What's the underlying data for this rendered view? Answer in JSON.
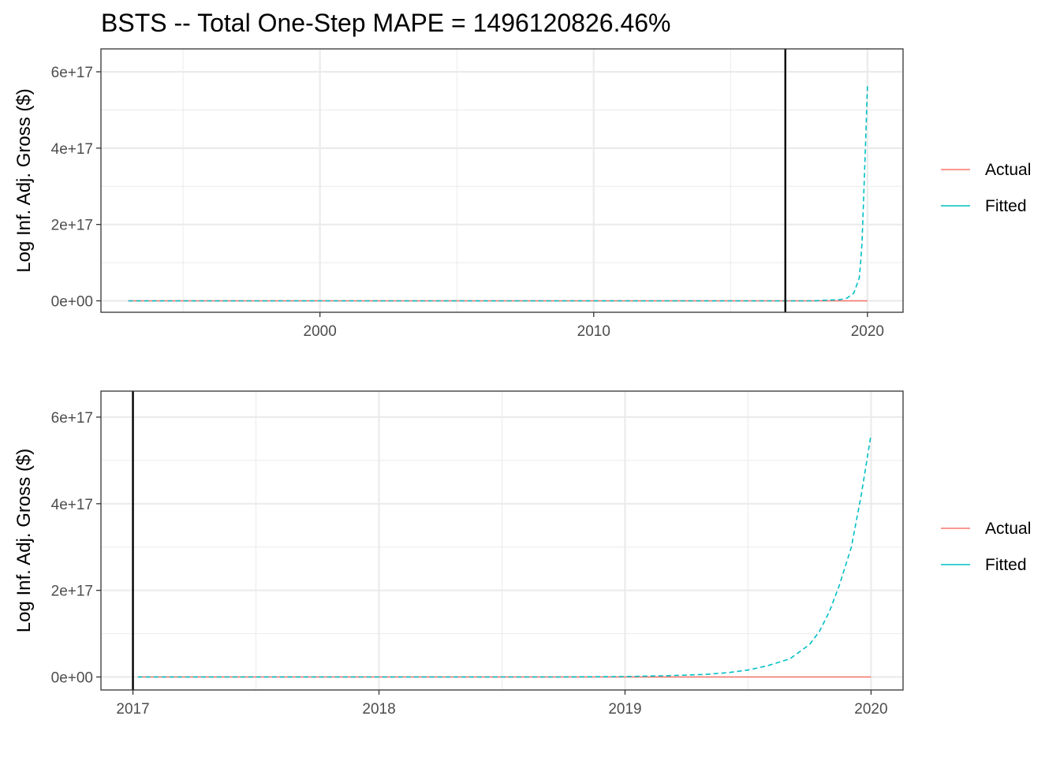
{
  "title": "BSTS -- Total One-Step MAPE = 1496120826.46%",
  "colors": {
    "actual": "#F8766D",
    "fitted": "#00BFC4",
    "cutoff": "#000000",
    "grid": "#EBEBEB"
  },
  "legend": {
    "items": [
      {
        "label": "Actual",
        "key": "actual"
      },
      {
        "label": "Fitted",
        "key": "fitted"
      }
    ]
  },
  "chart_data": [
    {
      "type": "line",
      "ylabel": "Log Inf. Adj. Gross ($)",
      "xlabel": "",
      "xlim": [
        1992.0,
        2021.3
      ],
      "ylim": [
        -3e+16,
        6.6e+17
      ],
      "x_ticks": [
        2000,
        2010,
        2020
      ],
      "x_tick_labels": [
        "2000",
        "2010",
        "2020"
      ],
      "x_minor": [
        1995,
        2005,
        2015
      ],
      "y_ticks": [
        0,
        2e+17,
        4e+17,
        6e+17
      ],
      "y_tick_labels": [
        "0e+00",
        "2e+17",
        "4e+17",
        "6e+17"
      ],
      "y_minor": [
        1e+17,
        3e+17,
        5e+17
      ],
      "cutoff_x": 2017.0,
      "legend_position": "right",
      "grid": true,
      "series": [
        {
          "name": "Actual",
          "key": "actual",
          "dash": "solid",
          "x": [
            1993.0,
            2020.0
          ],
          "y": [
            0,
            0
          ]
        },
        {
          "name": "Fitted",
          "key": "fitted",
          "dash": "dashed",
          "x": [
            1993.0,
            2017.0,
            2018.0,
            2019.0,
            2019.25,
            2019.5,
            2019.6,
            2019.7,
            2019.75,
            2019.8,
            2019.85,
            2019.9,
            2019.95,
            2020.0
          ],
          "y": [
            0,
            0,
            0,
            3000000000000000.0,
            7000000000000000.0,
            2e+16,
            4e+16,
            6e+16,
            1e+17,
            1.5e+17,
            2.5e+17,
            3.5e+17,
            4.5e+17,
            5.7e+17
          ]
        }
      ]
    },
    {
      "type": "line",
      "ylabel": "Log Inf. Adj. Gross ($)",
      "xlabel": "",
      "xlim": [
        2016.87,
        2020.13
      ],
      "ylim": [
        -3e+16,
        6.6e+17
      ],
      "x_ticks": [
        2017,
        2018,
        2019,
        2020
      ],
      "x_tick_labels": [
        "2017",
        "2018",
        "2019",
        "2020"
      ],
      "x_minor": [
        2017.5,
        2018.5,
        2019.5
      ],
      "y_ticks": [
        0,
        2e+17,
        4e+17,
        6e+17
      ],
      "y_tick_labels": [
        "0e+00",
        "2e+17",
        "4e+17",
        "6e+17"
      ],
      "y_minor": [
        1e+17,
        3e+17,
        5e+17
      ],
      "cutoff_x": 2017.0,
      "legend_position": "right",
      "grid": true,
      "series": [
        {
          "name": "Actual",
          "key": "actual",
          "dash": "solid",
          "x": [
            2017.02,
            2020.0
          ],
          "y": [
            0,
            0
          ]
        },
        {
          "name": "Fitted",
          "key": "fitted",
          "dash": "dashed",
          "x": [
            2017.02,
            2018.0,
            2018.75,
            2019.0,
            2019.17,
            2019.33,
            2019.42,
            2019.5,
            2019.58,
            2019.67,
            2019.75,
            2019.79,
            2019.83,
            2019.87,
            2019.92,
            2019.96,
            2020.0
          ],
          "y": [
            0,
            0,
            0,
            1000000000000000.0,
            3000000000000000.0,
            6000000000000000.0,
            1e+16,
            1.6e+16,
            2.6e+16,
            4.2e+16,
            7.5e+16,
            1.05e+17,
            1.5e+17,
            2.1e+17,
            3e+17,
            4.2e+17,
            5.6e+17
          ]
        }
      ]
    }
  ]
}
